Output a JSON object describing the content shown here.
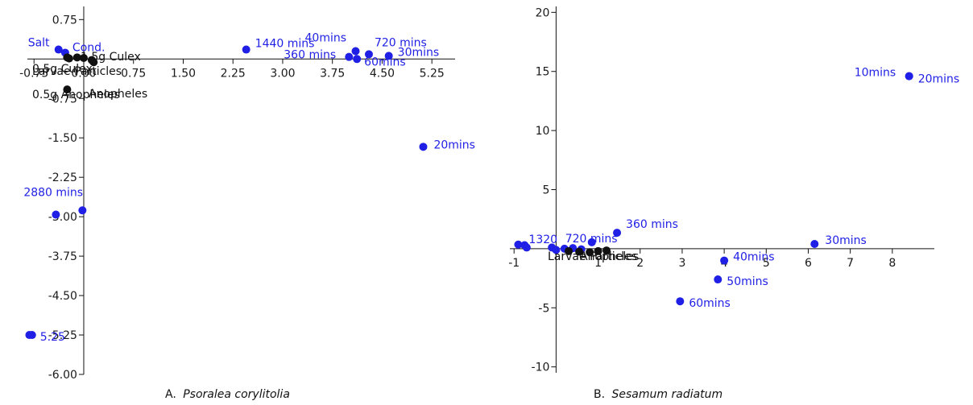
{
  "chart_data": [
    {
      "type": "scatter",
      "caption_prefix": "A.",
      "caption_species": "Psoralea corylitolia",
      "xlim": [
        -0.85,
        5.6
      ],
      "ylim": [
        -6.0,
        1.0
      ],
      "x_ticks": [
        "-0.75",
        "0.00",
        "0.75",
        "1.50",
        "2.25",
        "3.00",
        "3.75",
        "4.50",
        "5.25"
      ],
      "x_tick_values": [
        -0.75,
        0.0,
        0.75,
        1.5,
        2.25,
        3.0,
        3.75,
        4.5,
        5.25
      ],
      "y_ticks": [
        "0.75",
        "-0.75",
        "-1.50",
        "-2.25",
        "-3.00",
        "-3.75",
        "-4.50",
        "-5.25",
        "-6.00"
      ],
      "y_tick_values": [
        0.75,
        -0.75,
        -1.5,
        -2.25,
        -3.0,
        -3.75,
        -4.5,
        -5.25,
        -6.0
      ],
      "colors": {
        "blue": "#1f1fe6",
        "black": "#111111"
      },
      "series": [
        {
          "name": "",
          "color": "blue",
          "points": [
            {
              "x": -0.38,
              "y": 0.18,
              "label": "Salt"
            },
            {
              "x": -0.28,
              "y": 0.12,
              "label": "Cond."
            },
            {
              "x": 2.45,
              "y": 0.18,
              "label": "1440 mins"
            },
            {
              "x": 4.1,
              "y": 0.15,
              "label": "40mins"
            },
            {
              "x": 4.3,
              "y": 0.09,
              "label": "720 mins"
            },
            {
              "x": 4.6,
              "y": 0.06,
              "label": "30mins"
            },
            {
              "x": 4.0,
              "y": 0.04,
              "label": "360 mins"
            },
            {
              "x": 4.12,
              "y": 0.0,
              "label": "60mins"
            },
            {
              "x": 5.12,
              "y": -1.67,
              "label": "20mins"
            },
            {
              "x": -0.02,
              "y": -2.88,
              "label": "2880 mins"
            },
            {
              "x": -0.42,
              "y": -2.96,
              "label": ""
            },
            {
              "x": -0.82,
              "y": -5.25,
              "label": ""
            },
            {
              "x": -0.78,
              "y": -5.25,
              "label": "5.25"
            }
          ]
        },
        {
          "name": "",
          "color": "black",
          "points": [
            {
              "x": -0.25,
              "y": 0.03,
              "label": ""
            },
            {
              "x": -0.22,
              "y": 0.01,
              "label": ""
            },
            {
              "x": -0.1,
              "y": 0.03,
              "label": ""
            },
            {
              "x": 0.0,
              "y": 0.02,
              "label": ""
            },
            {
              "x": 0.12,
              "y": -0.02,
              "label": ""
            },
            {
              "x": 0.15,
              "y": -0.06,
              "label": ""
            },
            {
              "x": -0.25,
              "y": -0.58,
              "label": ""
            }
          ],
          "labels": [
            "1.5g Culex",
            "0.5g Culex",
            "Larvae Particles",
            "0.5g Anopheles",
            "Anopheles"
          ]
        }
      ]
    },
    {
      "type": "scatter",
      "caption_prefix": "B.",
      "caption_species": "Sesamum radiatum",
      "xlim": [
        -1.1,
        9.0
      ],
      "ylim": [
        -10.5,
        20.5
      ],
      "x_ticks": [
        "-1",
        "1",
        "2",
        "3",
        "4",
        "5",
        "6",
        "7",
        "8"
      ],
      "x_tick_values": [
        -1,
        1,
        2,
        3,
        4,
        5,
        6,
        7,
        8
      ],
      "y_ticks": [
        "20",
        "15",
        "10",
        "5",
        "-5",
        "-10"
      ],
      "y_tick_values": [
        20,
        15,
        10,
        5,
        -5,
        -10
      ],
      "colors": {
        "blue": "#1f1fe6",
        "black": "#111111"
      },
      "series": [
        {
          "name": "",
          "color": "blue",
          "points": [
            {
              "x": 8.4,
              "y": 14.6,
              "label": "10mins"
            },
            {
              "x": 8.4,
              "y": 14.6,
              "label": "20mins"
            },
            {
              "x": 6.15,
              "y": 0.4,
              "label": "30mins"
            },
            {
              "x": 1.45,
              "y": 1.35,
              "label": "360 mins"
            },
            {
              "x": 0.85,
              "y": 0.55,
              "label": "720 mins"
            },
            {
              "x": 4.0,
              "y": -1.0,
              "label": "40mins"
            },
            {
              "x": 3.85,
              "y": -2.6,
              "label": "50mins"
            },
            {
              "x": 2.95,
              "y": -4.45,
              "label": "60mins"
            },
            {
              "x": -0.9,
              "y": 0.35,
              "label": "1320"
            },
            {
              "x": -0.75,
              "y": 0.3,
              "label": ""
            },
            {
              "x": -0.7,
              "y": 0.1,
              "label": ""
            },
            {
              "x": -0.1,
              "y": 0.1,
              "label": ""
            },
            {
              "x": 0.0,
              "y": -0.1,
              "label": ""
            },
            {
              "x": 0.2,
              "y": 0.0,
              "label": ""
            },
            {
              "x": 0.4,
              "y": 0.05,
              "label": ""
            },
            {
              "x": 0.6,
              "y": -0.05,
              "label": ""
            }
          ]
        },
        {
          "name": "",
          "color": "black",
          "points": [
            {
              "x": 0.3,
              "y": -0.2,
              "label": ""
            },
            {
              "x": 0.55,
              "y": -0.25,
              "label": ""
            },
            {
              "x": 0.8,
              "y": -0.3,
              "label": ""
            },
            {
              "x": 1.0,
              "y": -0.2,
              "label": ""
            },
            {
              "x": 1.2,
              "y": -0.15,
              "label": ""
            }
          ],
          "labels": [
            "Larvae Particles",
            "Anopheles"
          ]
        }
      ]
    }
  ]
}
